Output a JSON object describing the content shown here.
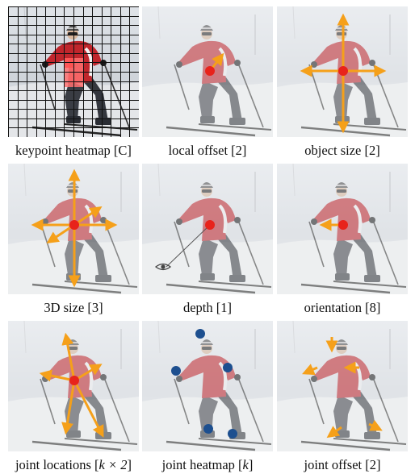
{
  "figure": {
    "panels": [
      {
        "id": "keypoint-heatmap",
        "caption": "keypoint heatmap [C]"
      },
      {
        "id": "local-offset",
        "caption": "local offset [2]"
      },
      {
        "id": "object-size",
        "caption": "object size [2]"
      },
      {
        "id": "3d-size",
        "caption": "3D size [3]"
      },
      {
        "id": "depth",
        "caption": "depth [1]"
      },
      {
        "id": "orientation",
        "caption": "orientation [8]"
      },
      {
        "id": "joint-locations",
        "caption_prefix": "joint locations [",
        "caption_var": "k × 2",
        "caption_suffix": "]"
      },
      {
        "id": "joint-heatmap",
        "caption_prefix": "joint heatmap [",
        "caption_var": "k",
        "caption_suffix": "]"
      },
      {
        "id": "joint-offset",
        "caption": "joint offset [2]"
      }
    ]
  },
  "colors": {
    "arrow": "#f5a01a",
    "center": "#e8231b",
    "joint": "#1d4f8f",
    "heat": "#ff7070",
    "jacket": "#c0262c"
  },
  "icons": {
    "depth_viewer": "eye-icon"
  }
}
